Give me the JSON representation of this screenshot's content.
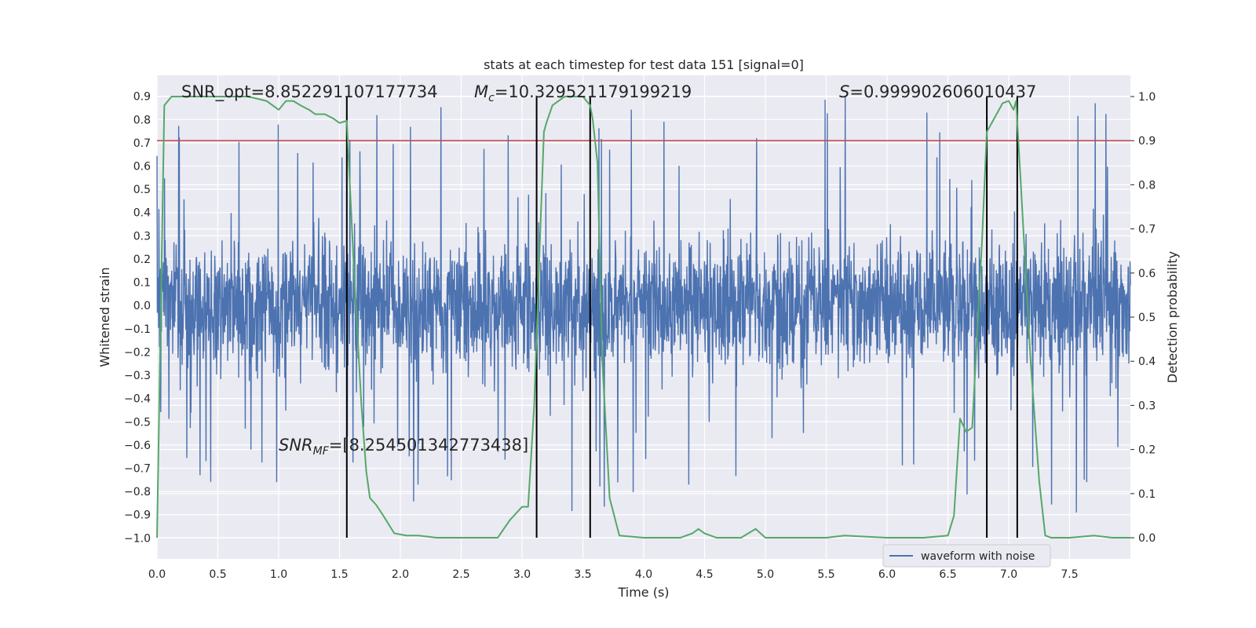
{
  "chart_data": {
    "type": "line",
    "title": "stats at each timestep for test data 151 [signal=0]",
    "xlabel": "Time (s)",
    "ylabel": "Whitened strain",
    "y2label": "Detection probability",
    "xlim": [
      0.0,
      8.0
    ],
    "ylim": [
      -1.09,
      0.99
    ],
    "y2lim": [
      -0.048,
      1.048
    ],
    "xticks": [
      "0.0",
      "0.5",
      "1.0",
      "1.5",
      "2.0",
      "2.5",
      "3.0",
      "3.5",
      "4.0",
      "4.5",
      "5.0",
      "5.5",
      "6.0",
      "6.5",
      "7.0",
      "7.5"
    ],
    "yticks": [
      "0.9",
      "0.8",
      "0.7",
      "0.6",
      "0.5",
      "0.4",
      "0.3",
      "0.2",
      "0.1",
      "0.0",
      "−0.1",
      "−0.2",
      "−0.3",
      "−0.4",
      "−0.5",
      "−0.6",
      "−0.7",
      "−0.8",
      "−0.9",
      "−1.0"
    ],
    "y2ticks": [
      "1.0",
      "0.9",
      "0.8",
      "0.7",
      "0.6",
      "0.5",
      "0.4",
      "0.3",
      "0.2",
      "0.1",
      "0.0"
    ],
    "threshold": 0.9,
    "vlines": [
      1.56,
      3.12,
      3.56,
      6.82,
      7.07
    ],
    "annotations": {
      "snr_opt": "SNR_opt=8.852291107177734",
      "mc_value": "=10.329521179199219",
      "s_value": "=0.999902606010437",
      "snr_mf_value": "=[8.254501342773438]"
    },
    "legend": [
      "waveform with noise"
    ],
    "colors": {
      "waveform": "#4c72b0",
      "probability": "#55a868",
      "threshold": "#c44e52",
      "vline": "#000000",
      "background": "#eaeaf2",
      "grid": "#ffffff"
    },
    "series": [
      {
        "name": "detection probability",
        "x": [
          0.0,
          0.06,
          0.12,
          0.25,
          0.5,
          0.75,
          0.9,
          1.0,
          1.06,
          1.12,
          1.18,
          1.25,
          1.3,
          1.38,
          1.45,
          1.5,
          1.56,
          1.62,
          1.68,
          1.72,
          1.75,
          1.8,
          1.86,
          1.95,
          2.05,
          2.15,
          2.3,
          2.5,
          2.6,
          2.7,
          2.8,
          2.9,
          3.0,
          3.05,
          3.1,
          3.14,
          3.18,
          3.2,
          3.25,
          3.35,
          3.5,
          3.56,
          3.58,
          3.62,
          3.66,
          3.72,
          3.8,
          4.0,
          4.3,
          4.4,
          4.45,
          4.5,
          4.6,
          4.8,
          4.92,
          5.0,
          5.2,
          5.5,
          5.65,
          6.0,
          6.3,
          6.5,
          6.55,
          6.6,
          6.65,
          6.7,
          6.78,
          6.82,
          6.88,
          6.95,
          7.0,
          7.04,
          7.06,
          7.1,
          7.18,
          7.25,
          7.3,
          7.35,
          7.5,
          7.7,
          7.85,
          8.0
        ],
        "y": [
          0.0,
          0.98,
          1.0,
          1.0,
          1.0,
          1.0,
          0.99,
          0.97,
          0.99,
          0.99,
          0.98,
          0.97,
          0.96,
          0.96,
          0.95,
          0.94,
          0.945,
          0.6,
          0.3,
          0.15,
          0.09,
          0.075,
          0.05,
          0.01,
          0.005,
          0.005,
          0.0,
          0.0,
          0.0,
          0.0,
          0.0,
          0.04,
          0.07,
          0.07,
          0.3,
          0.62,
          0.92,
          0.94,
          0.98,
          1.0,
          1.0,
          0.98,
          0.95,
          0.85,
          0.4,
          0.09,
          0.005,
          0.0,
          0.0,
          0.01,
          0.02,
          0.01,
          0.0,
          0.0,
          0.02,
          0.0,
          0.0,
          0.0,
          0.005,
          0.0,
          0.0,
          0.005,
          0.05,
          0.27,
          0.24,
          0.25,
          0.67,
          0.92,
          0.95,
          0.985,
          0.99,
          0.97,
          0.99,
          0.8,
          0.4,
          0.13,
          0.005,
          0.0,
          0.0,
          0.005,
          0.0,
          0.0
        ]
      },
      {
        "name": "waveform with noise",
        "generated": "dense whitened-strain noise, approx. symmetric around 0, typical envelope ±0.45 with spikes reaching 0.9 and −1.0"
      }
    ]
  }
}
